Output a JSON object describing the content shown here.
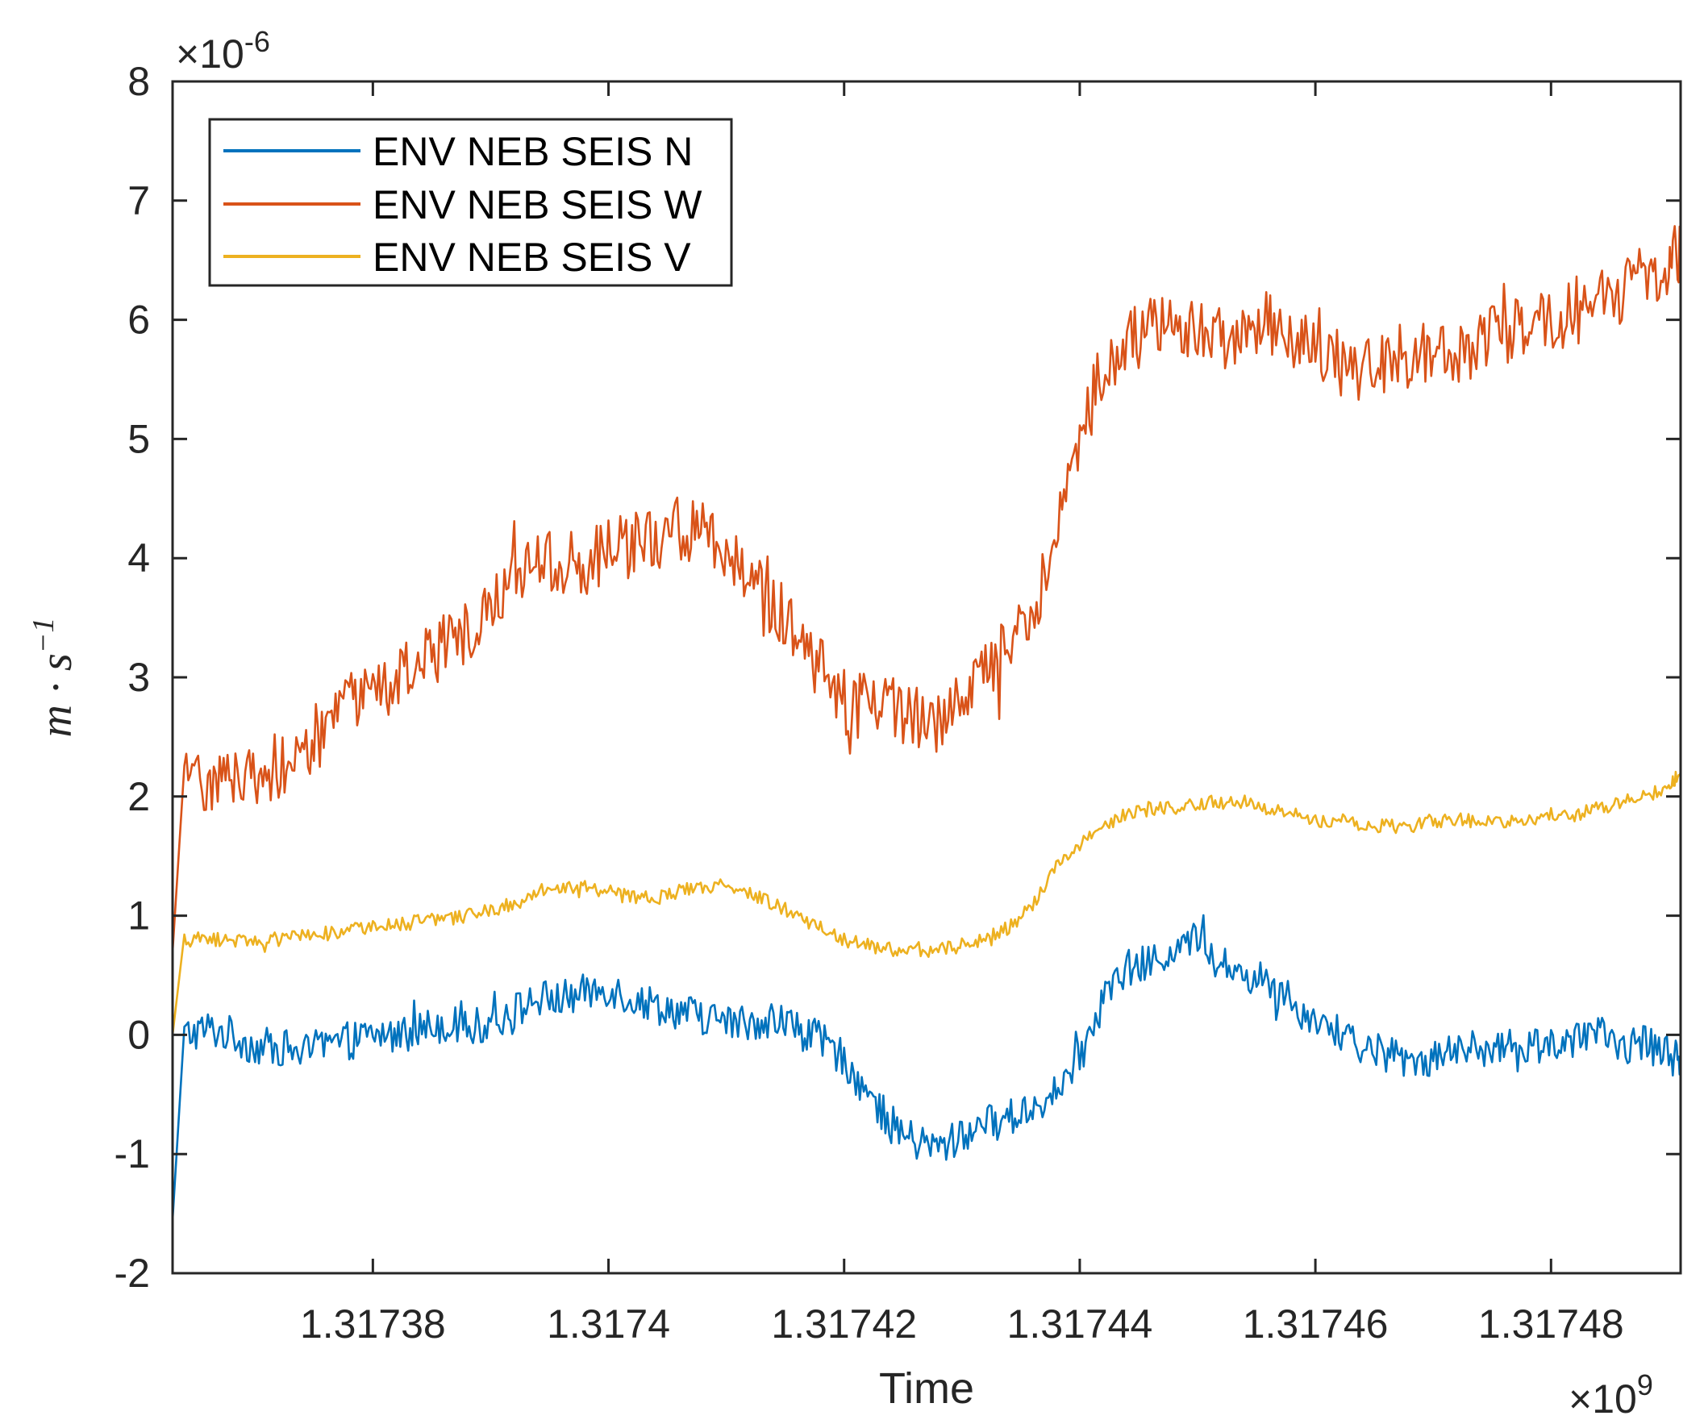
{
  "chart_data": {
    "type": "line",
    "xlabel": "Time",
    "ylabel_base": "m · s",
    "ylabel_exp": "−1",
    "x_multiplier": {
      "base": "×10",
      "exp": "9"
    },
    "y_multiplier": {
      "base": "×10",
      "exp": "-6"
    },
    "xlim": [
      1.317363,
      1.317491
    ],
    "ylim": [
      -2,
      8
    ],
    "xticks": [
      1.31738,
      1.3174,
      1.31742,
      1.31744,
      1.31746,
      1.31748
    ],
    "xtick_labels": [
      "1.31738",
      "1.3174",
      "1.31742",
      "1.31744",
      "1.31746",
      "1.31748"
    ],
    "yticks": [
      -2,
      -1,
      0,
      1,
      2,
      3,
      4,
      5,
      6,
      7,
      8
    ],
    "ytick_labels": [
      "-2",
      "-1",
      "0",
      "1",
      "2",
      "3",
      "4",
      "5",
      "6",
      "7",
      "8"
    ],
    "legend_position": "top-left",
    "series": [
      {
        "name": "ENV NEB SEIS N",
        "color": "#0072BD",
        "x": [
          1.317363,
          1.317364,
          1.317366,
          1.317368,
          1.31737,
          1.317372,
          1.317374,
          1.317376,
          1.317378,
          1.31738,
          1.317382,
          1.317384,
          1.317386,
          1.317388,
          1.31739,
          1.317392,
          1.317394,
          1.317396,
          1.317398,
          1.3174,
          1.317402,
          1.317404,
          1.317406,
          1.317408,
          1.31741,
          1.317412,
          1.317414,
          1.317416,
          1.317418,
          1.31742,
          1.317422,
          1.317424,
          1.317426,
          1.317428,
          1.31743,
          1.317432,
          1.317434,
          1.317436,
          1.317438,
          1.31744,
          1.317442,
          1.317444,
          1.317446,
          1.317448,
          1.31745,
          1.317452,
          1.317454,
          1.317456,
          1.317458,
          1.31746,
          1.317462,
          1.317464,
          1.317466,
          1.317468,
          1.31747,
          1.317472,
          1.317474,
          1.317476,
          1.317478,
          1.31748,
          1.317482,
          1.317484,
          1.317486,
          1.317488,
          1.31749,
          1.317491
        ],
        "y": [
          -1.55,
          0.0,
          0.05,
          0.0,
          -0.1,
          -0.1,
          -0.15,
          -0.1,
          -0.05,
          0.0,
          0.0,
          0.05,
          0.1,
          0.05,
          0.1,
          0.2,
          0.3,
          0.3,
          0.35,
          0.4,
          0.3,
          0.25,
          0.2,
          0.15,
          0.1,
          0.1,
          0.15,
          0.05,
          -0.05,
          -0.2,
          -0.5,
          -0.75,
          -0.9,
          -0.95,
          -0.85,
          -0.75,
          -0.7,
          -0.6,
          -0.5,
          -0.2,
          0.3,
          0.55,
          0.6,
          0.7,
          0.8,
          0.6,
          0.5,
          0.45,
          0.25,
          0.15,
          0.0,
          -0.1,
          -0.15,
          -0.2,
          -0.2,
          -0.15,
          -0.1,
          -0.15,
          -0.1,
          -0.05,
          -0.1,
          0.0,
          -0.1,
          -0.05,
          -0.15,
          -0.25
        ]
      },
      {
        "name": "ENV NEB SEIS W",
        "color": "#D95319",
        "x": [
          1.317363,
          1.317364,
          1.317366,
          1.317368,
          1.31737,
          1.317372,
          1.317374,
          1.317376,
          1.317378,
          1.31738,
          1.317382,
          1.317384,
          1.317386,
          1.317388,
          1.31739,
          1.317392,
          1.317394,
          1.317396,
          1.317398,
          1.3174,
          1.317402,
          1.317404,
          1.317406,
          1.317408,
          1.31741,
          1.317412,
          1.317414,
          1.317416,
          1.317418,
          1.31742,
          1.317422,
          1.317424,
          1.317426,
          1.317428,
          1.31743,
          1.317432,
          1.317434,
          1.317436,
          1.317438,
          1.31744,
          1.317442,
          1.317444,
          1.317446,
          1.317448,
          1.31745,
          1.317452,
          1.317454,
          1.317456,
          1.317458,
          1.31746,
          1.317462,
          1.317464,
          1.317466,
          1.317468,
          1.31747,
          1.317472,
          1.317474,
          1.317476,
          1.317478,
          1.31748,
          1.317482,
          1.317484,
          1.317486,
          1.317488,
          1.31749,
          1.317491
        ],
        "y": [
          0.7,
          2.1,
          2.15,
          2.15,
          2.2,
          2.25,
          2.35,
          2.55,
          2.75,
          2.85,
          2.95,
          3.15,
          3.25,
          3.4,
          3.6,
          3.8,
          3.95,
          3.95,
          3.95,
          4.05,
          4.1,
          4.15,
          4.25,
          4.25,
          4.1,
          3.9,
          3.6,
          3.35,
          3.05,
          2.8,
          2.75,
          2.75,
          2.7,
          2.65,
          2.8,
          3.0,
          3.25,
          3.55,
          4.2,
          5.0,
          5.6,
          5.8,
          5.95,
          5.95,
          5.9,
          5.85,
          5.9,
          6.0,
          5.85,
          5.7,
          5.6,
          5.6,
          5.65,
          5.7,
          5.75,
          5.75,
          5.8,
          5.9,
          5.95,
          6.0,
          6.05,
          6.15,
          6.25,
          6.35,
          6.5,
          6.6
        ]
      },
      {
        "name": "ENV NEB SEIS V",
        "color": "#EDB120",
        "x": [
          1.317363,
          1.317364,
          1.317366,
          1.317368,
          1.31737,
          1.317372,
          1.317374,
          1.317376,
          1.317378,
          1.31738,
          1.317382,
          1.317384,
          1.317386,
          1.317388,
          1.31739,
          1.317392,
          1.317394,
          1.317396,
          1.317398,
          1.3174,
          1.317402,
          1.317404,
          1.317406,
          1.317408,
          1.31741,
          1.317412,
          1.317414,
          1.317416,
          1.317418,
          1.31742,
          1.317422,
          1.317424,
          1.317426,
          1.317428,
          1.31743,
          1.317432,
          1.317434,
          1.317436,
          1.317438,
          1.31744,
          1.317442,
          1.317444,
          1.317446,
          1.317448,
          1.31745,
          1.317452,
          1.317454,
          1.317456,
          1.317458,
          1.31746,
          1.317462,
          1.317464,
          1.317466,
          1.317468,
          1.31747,
          1.317472,
          1.317474,
          1.317476,
          1.317478,
          1.31748,
          1.317482,
          1.317484,
          1.317486,
          1.317488,
          1.31749,
          1.317491
        ],
        "y": [
          0.0,
          0.8,
          0.8,
          0.8,
          0.8,
          0.8,
          0.82,
          0.85,
          0.88,
          0.9,
          0.92,
          0.95,
          0.97,
          1.0,
          1.05,
          1.1,
          1.2,
          1.25,
          1.25,
          1.2,
          1.15,
          1.15,
          1.2,
          1.25,
          1.25,
          1.2,
          1.1,
          1.0,
          0.9,
          0.8,
          0.75,
          0.72,
          0.72,
          0.72,
          0.75,
          0.8,
          0.9,
          1.1,
          1.4,
          1.6,
          1.75,
          1.85,
          1.9,
          1.9,
          1.95,
          1.95,
          1.95,
          1.9,
          1.85,
          1.8,
          1.8,
          1.75,
          1.75,
          1.75,
          1.8,
          1.8,
          1.8,
          1.8,
          1.8,
          1.85,
          1.85,
          1.9,
          1.95,
          2.0,
          2.1,
          2.2
        ]
      }
    ]
  }
}
